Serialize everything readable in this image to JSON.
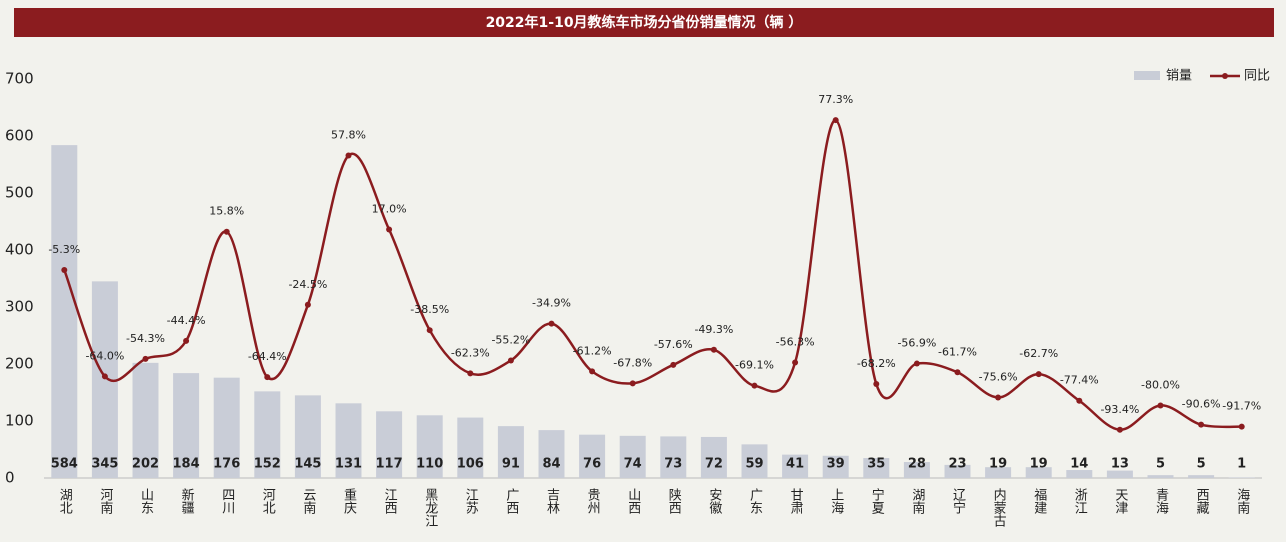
{
  "chart_data": {
    "type": "bar-line",
    "title": "2022年1-10月教练车市场分省份销量情况（辆 ）",
    "categories": [
      "湖北",
      "河南",
      "山东",
      "新疆",
      "四川",
      "河北",
      "云南",
      "重庆",
      "江西",
      "黑龙江",
      "江苏",
      "广西",
      "吉林",
      "贵州",
      "山西",
      "陕西",
      "安徽",
      "广东",
      "甘肃",
      "上海",
      "宁夏",
      "湖南",
      "辽宁",
      "内蒙古",
      "福建",
      "浙江",
      "天津",
      "青海",
      "西藏",
      "海南"
    ],
    "series": [
      {
        "name": "销量",
        "type": "bar",
        "color": "#c9cdd7",
        "values": [
          584,
          345,
          202,
          184,
          176,
          152,
          145,
          131,
          117,
          110,
          106,
          91,
          84,
          76,
          74,
          73,
          72,
          59,
          41,
          39,
          35,
          28,
          23,
          19,
          19,
          14,
          13,
          5,
          5,
          1
        ]
      },
      {
        "name": "同比",
        "type": "line",
        "axis": "y2",
        "color": "#8b1c1f",
        "values": [
          -5.3,
          -64.0,
          -54.3,
          -44.4,
          15.8,
          -64.4,
          -24.5,
          57.8,
          17.0,
          -38.5,
          -62.3,
          -55.2,
          -34.9,
          -61.2,
          -67.8,
          -57.6,
          -49.3,
          -69.1,
          -56.3,
          77.3,
          -68.2,
          -56.9,
          -61.7,
          -75.6,
          -62.7,
          -77.4,
          -93.4,
          -80.0,
          -90.6,
          -91.7
        ],
        "value_labels": [
          "-5.3%",
          "-64.0%",
          "-54.3%",
          "-44.4%",
          "15.8%",
          "-64.4%",
          "-24.5%",
          "57.8%",
          "17.0%",
          "-38.5%",
          "-62.3%",
          "-55.2%",
          "-34.9%",
          "-61.2%",
          "-67.8%",
          "-57.6%",
          "-49.3%",
          "-69.1%",
          "-56.3%",
          "77.3%",
          "-68.2%",
          "-56.9%",
          "-61.7%",
          "-75.6%",
          "-62.7%",
          "-77.4%",
          "-93.4%",
          "-80.0%",
          "-90.6%",
          "-91.7%"
        ]
      }
    ],
    "ylim": [
      0,
      700
    ],
    "yticks": [
      0,
      100,
      200,
      300,
      400,
      500,
      600,
      700
    ],
    "y2lim": [
      -120,
      100
    ],
    "legend": "top-right"
  }
}
